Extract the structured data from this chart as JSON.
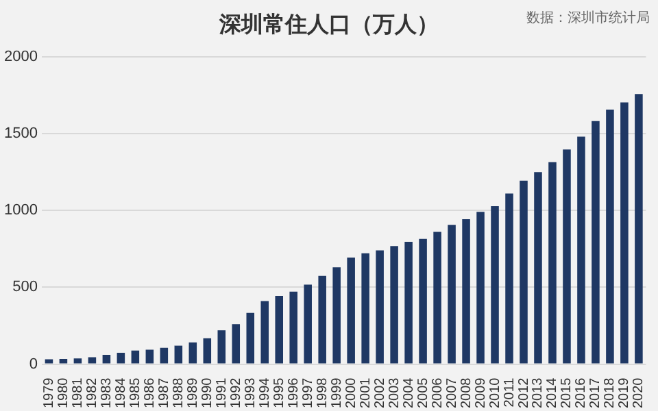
{
  "chart_data": {
    "type": "bar",
    "title": "深圳常住人口（万人）",
    "annotations": [
      "数据：深圳市统计局"
    ],
    "categories": [
      "1979",
      "1980",
      "1981",
      "1982",
      "1983",
      "1984",
      "1985",
      "1986",
      "1987",
      "1988",
      "1989",
      "1990",
      "1991",
      "1992",
      "1993",
      "1994",
      "1995",
      "1996",
      "1997",
      "1998",
      "1999",
      "2000",
      "2001",
      "2002",
      "2003",
      "2004",
      "2005",
      "2006",
      "2007",
      "2008",
      "2009",
      "2010",
      "2011",
      "2012",
      "2013",
      "2014",
      "2015",
      "2016",
      "2017",
      "2018",
      "2019",
      "2020"
    ],
    "values": [
      31,
      33,
      37,
      45,
      60,
      74,
      88,
      94,
      106,
      120,
      141,
      168,
      220,
      260,
      333,
      410,
      444,
      472,
      518,
      574,
      630,
      694,
      722,
      741,
      768,
      796,
      815,
      861,
      907,
      944,
      991,
      1028,
      1111,
      1194,
      1250,
      1315,
      1398,
      1481,
      1583,
      1657,
      1704,
      1759
    ],
    "color": "#1f3864",
    "ylim": [
      0,
      2000
    ],
    "yticks": [
      0,
      500,
      1000,
      1500,
      2000
    ],
    "grid": "y"
  }
}
